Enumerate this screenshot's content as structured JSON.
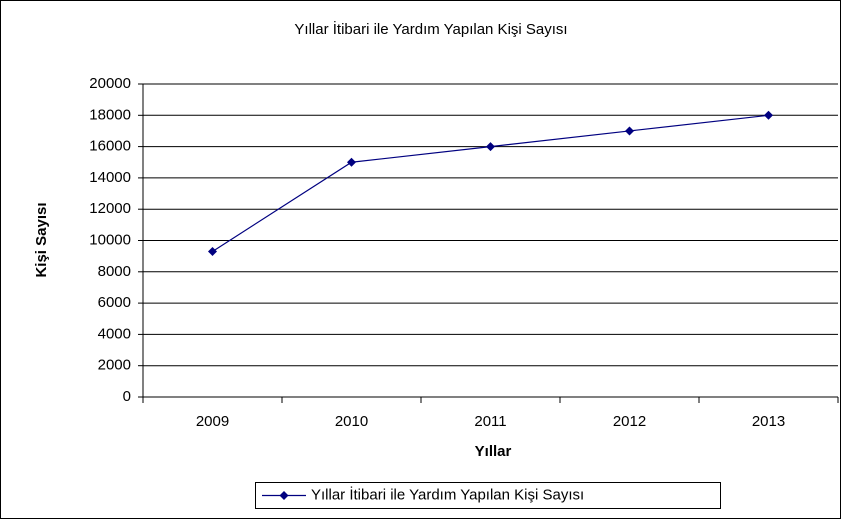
{
  "chart_data": {
    "type": "line",
    "title": "Yıllar İtibari ile Yardım Yapılan Kişi Sayısı",
    "x_label": "Yıllar",
    "y_label": "Kişi Sayısı",
    "categories": [
      "2009",
      "2010",
      "2011",
      "2012",
      "2013"
    ],
    "series": [
      {
        "name": "Yıllar İtibari ile Yardım Yapılan Kişi Sayısı",
        "color": "#000080",
        "values": [
          9300,
          15000,
          16000,
          17000,
          18000
        ]
      }
    ],
    "ylim": [
      0,
      20000
    ],
    "yticks": [
      0,
      2000,
      4000,
      6000,
      8000,
      10000,
      12000,
      14000,
      16000,
      18000,
      20000
    ],
    "grid": true,
    "legend": "bottom"
  }
}
